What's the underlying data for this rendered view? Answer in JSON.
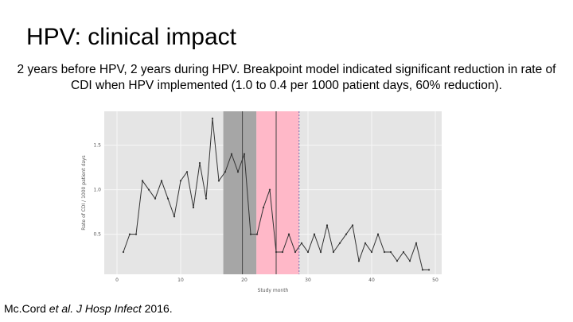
{
  "slide": {
    "title": "HPV: clinical impact",
    "subtitle": "2 years before HPV, 2 years during HPV. Breakpoint model indicated significant reduction in rate of CDI when HPV implemented (1.0 to 0.4 per 1000 patient days, 60% reduction).",
    "citation": {
      "authors": "Mc.Cord ",
      "etal": "et al. J Hosp Infect ",
      "year": "2016."
    }
  },
  "colors": {
    "panel": "#e5e5e5",
    "grid": "#f7f7f7",
    "line": "#333333",
    "band1": "#a6a6a6",
    "band2": "#ffb8c8",
    "divider": "#444444",
    "band_edge": "#7a6fb0"
  },
  "chart_data": {
    "type": "line",
    "xlabel": "Study month",
    "ylabel": "Rate of CDI / 1000 patient days",
    "xlim": [
      -2,
      51
    ],
    "ylim": [
      0.05,
      1.88
    ],
    "x_ticks": [
      0,
      10,
      20,
      30,
      40,
      50
    ],
    "y_ticks": [
      0.5,
      1.0,
      1.5
    ],
    "x_tick_labels": [
      "0",
      "10",
      "20",
      "30",
      "40",
      "50"
    ],
    "y_tick_labels": [
      "0.5",
      "1.0",
      "1.5"
    ],
    "shaded_regions": [
      {
        "from": 16.7,
        "to": 21.9,
        "color": "band1"
      },
      {
        "from": 21.9,
        "to": 28.6,
        "color": "band2"
      }
    ],
    "vertical_lines": [
      19.7,
      25.0
    ],
    "series": [
      {
        "name": "CDI rate",
        "x": [
          1,
          2,
          3,
          4,
          5,
          6,
          7,
          8,
          9,
          10,
          11,
          12,
          13,
          14,
          15,
          16,
          17,
          18,
          19,
          20,
          21,
          22,
          23,
          24,
          25,
          26,
          27,
          28,
          29,
          30,
          31,
          32,
          33,
          34,
          35,
          36,
          37,
          38,
          39,
          40,
          41,
          42,
          43,
          44,
          45,
          46,
          47,
          48,
          49
        ],
        "y": [
          0.3,
          0.5,
          0.5,
          1.1,
          1.0,
          0.9,
          1.1,
          0.9,
          0.7,
          1.1,
          1.2,
          0.8,
          1.3,
          0.9,
          1.8,
          1.1,
          1.2,
          1.4,
          1.2,
          1.4,
          0.5,
          0.5,
          0.8,
          1.0,
          0.3,
          0.3,
          0.5,
          0.3,
          0.4,
          0.3,
          0.5,
          0.3,
          0.6,
          0.3,
          0.4,
          0.5,
          0.6,
          0.2,
          0.4,
          0.3,
          0.5,
          0.3,
          0.3,
          0.2,
          0.3,
          0.2,
          0.4,
          0.1,
          0.1
        ]
      }
    ]
  }
}
